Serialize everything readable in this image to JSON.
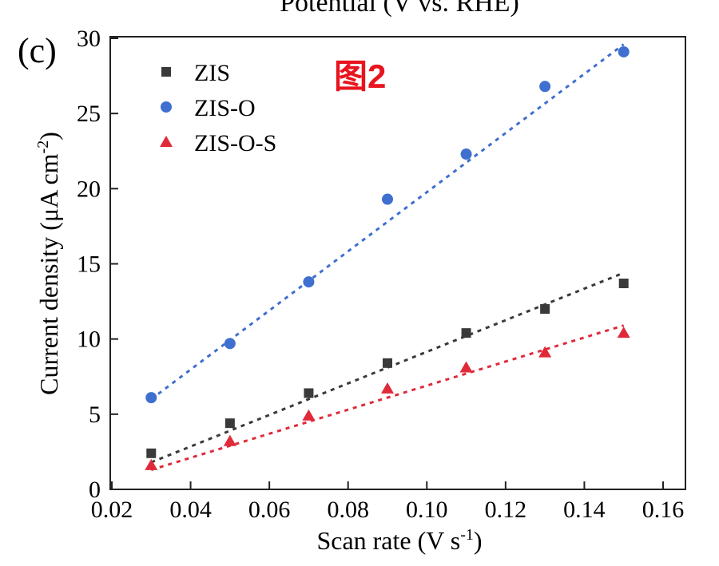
{
  "chart_data": {
    "type": "scatter",
    "panel_label": "(c)",
    "top_cut_label": "Potential (V vs. RHE)",
    "annotation": "图2",
    "annotation_color": "#e8141e",
    "xlabel": "Scan rate (V s-1)",
    "xlabel_main": "Scan rate (V s",
    "xlabel_sup": "-1",
    "xlabel_end": ")",
    "ylabel_main": "Current density (μA cm",
    "ylabel_sup": "-2",
    "ylabel_end": ")",
    "xlim": [
      0.02,
      0.16
    ],
    "ylim": [
      0,
      30
    ],
    "xticks": [
      "0.02",
      "0.04",
      "0.06",
      "0.08",
      "0.10",
      "0.12",
      "0.14",
      "0.16"
    ],
    "yticks": [
      "0",
      "5",
      "10",
      "15",
      "20",
      "25",
      "30"
    ],
    "legend_position": "top-left",
    "x": [
      0.03,
      0.05,
      0.07,
      0.09,
      0.11,
      0.13,
      0.15
    ],
    "series": [
      {
        "name": "ZIS",
        "marker": "square",
        "color": "#3a3a3a",
        "values": [
          2.4,
          4.4,
          6.4,
          8.4,
          10.4,
          12.0,
          13.7
        ],
        "fit": [
          1.8,
          14.4
        ]
      },
      {
        "name": "ZIS-O",
        "marker": "circle",
        "color": "#3f6fcf",
        "values": [
          6.1,
          9.7,
          13.8,
          19.3,
          22.3,
          26.8,
          29.1
        ],
        "fit": [
          6.0,
          29.6
        ]
      },
      {
        "name": "ZIS-O-S",
        "marker": "triangle",
        "color": "#e02a3a",
        "values": [
          1.6,
          3.2,
          4.9,
          6.7,
          8.1,
          9.1,
          10.4
        ],
        "fit": [
          1.3,
          10.9
        ]
      }
    ]
  }
}
